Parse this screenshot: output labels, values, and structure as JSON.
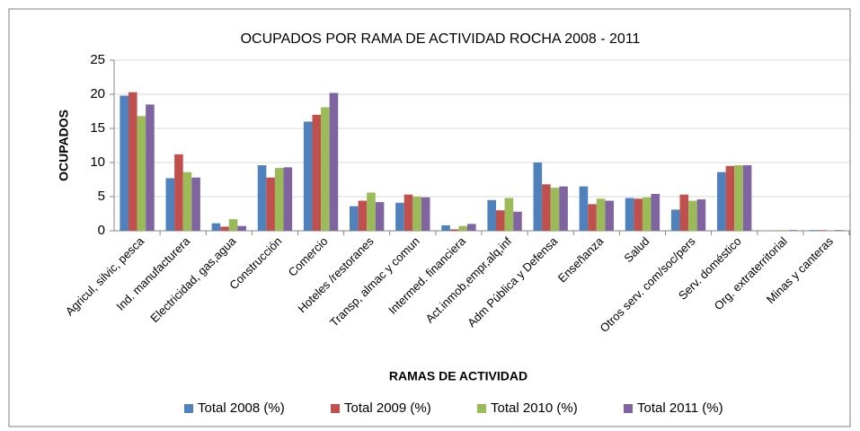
{
  "chart_data": {
    "type": "bar",
    "title": "OCUPADOS POR RAMA DE ACTIVIDAD ROCHA 2008 - 2011",
    "x_label": "RAMAS DE ACTIVIDAD",
    "y_label": "OCUPADOS",
    "categories": [
      "Agricul, silvic, pesca",
      "Ind. manufacturera",
      "Electricidad, gas,agua",
      "Construcción",
      "Comercio",
      "Hoteles /restoranes",
      "Transp, almac y comun",
      "Intermed. financiera",
      "Act.inmob,empr,alq,inf",
      "Adm Pública y Defensa",
      "Enseñanza",
      "Salud",
      "Otros serv. com/soc/pers",
      "Serv. doméstico",
      "Org. extraterritorial",
      "Minas y canteras"
    ],
    "series": [
      {
        "name": "Total 2008 (%)",
        "color": "#4f81bd",
        "values": [
          19.8,
          7.7,
          1.1,
          9.6,
          16.0,
          3.6,
          4.1,
          0.8,
          4.5,
          10.0,
          6.5,
          4.8,
          3.1,
          8.6,
          0,
          0.1
        ]
      },
      {
        "name": "Total 2009 (%)",
        "color": "#c0504d",
        "values": [
          20.3,
          11.2,
          0.6,
          7.8,
          17.0,
          4.4,
          5.3,
          0.2,
          3.0,
          6.8,
          3.9,
          4.7,
          5.3,
          9.5,
          0,
          0.1
        ]
      },
      {
        "name": "Total 2010 (%)",
        "color": "#9bbb59",
        "values": [
          16.8,
          8.6,
          1.7,
          9.2,
          18.1,
          5.6,
          5.0,
          0.7,
          4.8,
          6.3,
          4.7,
          4.9,
          4.4,
          9.6,
          0.1,
          0
        ]
      },
      {
        "name": "Total 2011 (%)",
        "color": "#8064a2",
        "values": [
          18.5,
          7.8,
          0.7,
          9.3,
          20.2,
          4.2,
          4.9,
          1.0,
          2.8,
          6.5,
          4.4,
          5.4,
          4.6,
          9.6,
          0.1,
          0.1
        ]
      }
    ],
    "ylim": [
      0,
      25
    ],
    "yticks": [
      0,
      5,
      10,
      15,
      20,
      25
    ],
    "grid": true,
    "legend": "bottom"
  }
}
